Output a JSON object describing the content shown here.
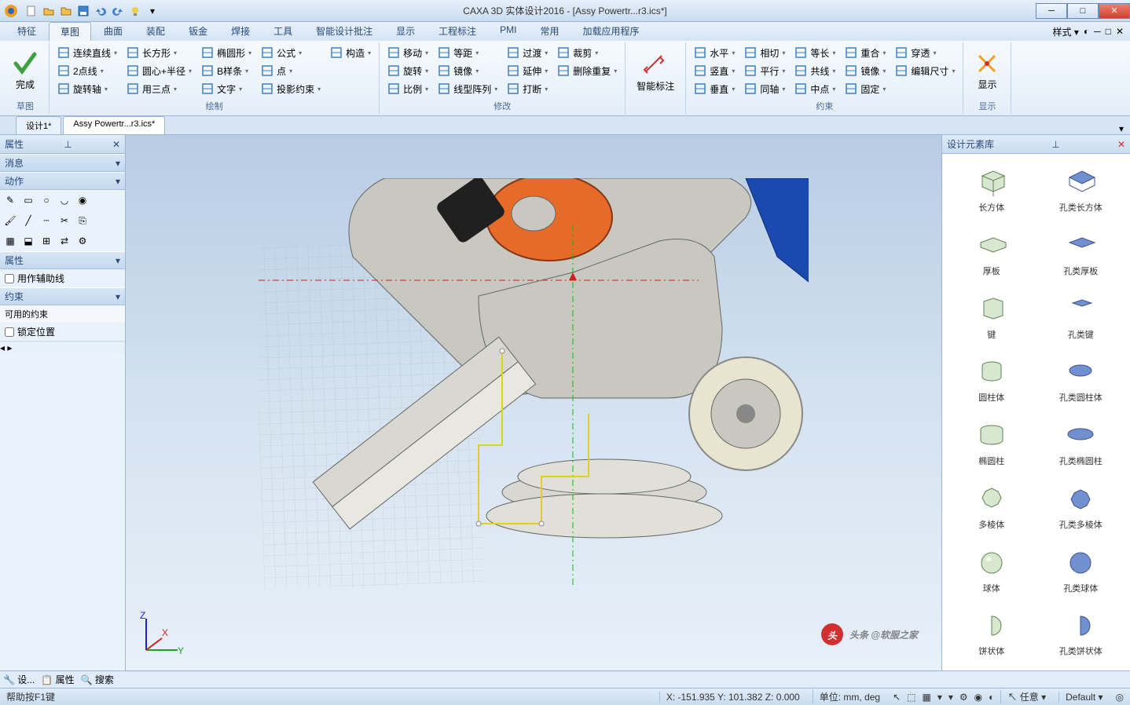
{
  "app": {
    "title": "CAXA 3D 实体设计2016 - [Assy Powertr...r3.ics*]"
  },
  "window_controls": {
    "min": "─",
    "max": "□",
    "close": "✕"
  },
  "menu": {
    "tabs": [
      "特征",
      "草图",
      "曲面",
      "装配",
      "钣金",
      "焊接",
      "工具",
      "智能设计批注",
      "显示",
      "工程标注",
      "PMI",
      "常用",
      "加载应用程序"
    ],
    "active_index": 1,
    "style_label": "样式"
  },
  "ribbon": {
    "finish": {
      "label": "完成",
      "group": "草图"
    },
    "draw": {
      "group": "绘制",
      "col1": [
        "连续直线",
        "2点线",
        "旋转轴"
      ],
      "col2": [
        "长方形",
        "圆心+半径",
        "用三点"
      ],
      "col3": [
        "椭圆形",
        "B样条",
        "文字"
      ],
      "col4": [
        "公式",
        "点",
        "投影约束"
      ],
      "col5": [
        "构造"
      ]
    },
    "modify": {
      "group": "修改",
      "col1": [
        "移动",
        "旋转",
        "比例"
      ],
      "col2": [
        "等距",
        "镜像",
        "线型阵列"
      ],
      "col3": [
        "过渡",
        "延伸",
        "打断"
      ],
      "col4": [
        "裁剪",
        "删除重复"
      ]
    },
    "smart": {
      "label": "智能标注"
    },
    "constraint": {
      "group": "约束",
      "col1": [
        "水平",
        "竖直",
        "垂直"
      ],
      "col2": [
        "相切",
        "平行",
        "同轴"
      ],
      "col3": [
        "等长",
        "共线",
        "中点"
      ],
      "col4": [
        "重合",
        "镜像",
        "固定"
      ],
      "col5": [
        "穿透",
        "编辑尺寸"
      ]
    },
    "display": {
      "label": "显示",
      "group": "显示"
    }
  },
  "doc_tabs": {
    "items": [
      "设计1*",
      "Assy Powertr...r3.ics*"
    ],
    "active_index": 1
  },
  "left": {
    "prop_title": "属性",
    "msg_head": "消息",
    "action_head": "动作",
    "prop_head": "属性",
    "aux_line": "用作辅助线",
    "constraint_head": "约束",
    "avail_constraint": "可用的约束",
    "lock_pos": "锁定位置"
  },
  "right": {
    "title": "设计元素库",
    "items": [
      {
        "l": "长方体"
      },
      {
        "l": "孔类长方体"
      },
      {
        "l": "厚板"
      },
      {
        "l": "孔类厚板"
      },
      {
        "l": "键"
      },
      {
        "l": "孔类键"
      },
      {
        "l": "圆柱体"
      },
      {
        "l": "孔类圆柱体"
      },
      {
        "l": "椭圆柱"
      },
      {
        "l": "孔类椭圆柱"
      },
      {
        "l": "多棱体"
      },
      {
        "l": "孔类多棱体"
      },
      {
        "l": "球体"
      },
      {
        "l": "孔类球体"
      },
      {
        "l": "饼状体"
      },
      {
        "l": "孔类饼状体"
      }
    ]
  },
  "bottom": {
    "tabs": [
      "设...",
      "属性",
      "搜索"
    ]
  },
  "status": {
    "help": "帮助按F1键",
    "coords": "X: -151.935 Y: 101.382 Z: 0.000",
    "units": "单位: mm, deg",
    "any": "任意",
    "default": "Default"
  },
  "watermark": "头条 @软服之家",
  "colors": {
    "accent": "#2a6ab8",
    "ribbon_bg": "#eaf2fb",
    "orange": "#e66a28",
    "blue": "#1a4ab0",
    "grey": "#b8b8b0"
  }
}
